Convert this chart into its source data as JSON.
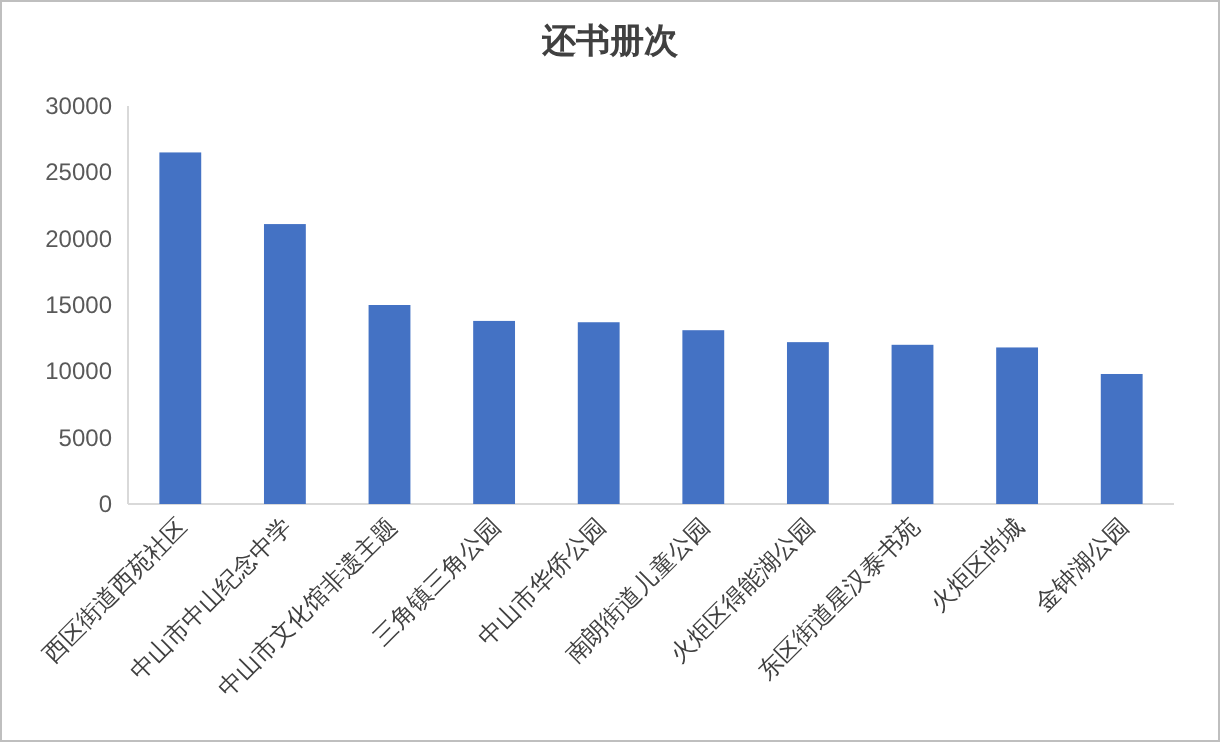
{
  "chart_data": {
    "type": "bar",
    "title": "还书册次",
    "categories": [
      "西区街道西苑社区",
      "中山市中山纪念中学",
      "中山市文化馆非遗主题",
      "三角镇三角公园",
      "中山市华侨公园",
      "南朗街道儿童公园",
      "火炬区得能湖公园",
      "东区街道星汉泰书苑",
      "火炬区尚城",
      "金钟湖公园"
    ],
    "values": [
      26500,
      21100,
      15000,
      13800,
      13700,
      13100,
      12200,
      12000,
      11800,
      9800
    ],
    "color": "#4472c4",
    "ylim": [
      0,
      30000
    ],
    "yticks": [
      0,
      5000,
      10000,
      15000,
      20000,
      25000,
      30000
    ],
    "grid": false
  }
}
